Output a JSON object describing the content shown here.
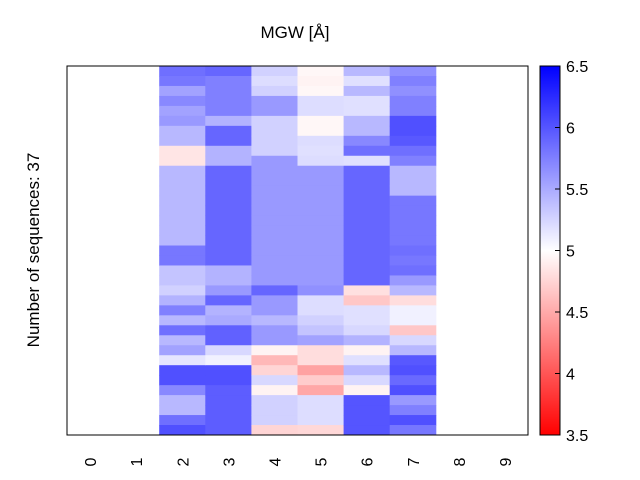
{
  "chart_data": {
    "type": "heatmap",
    "title": "MGW [Å]",
    "xlabel": "",
    "ylabel": "Number of sequences: 37",
    "x_ticks": [
      "0",
      "1",
      "2",
      "3",
      "4",
      "5",
      "6",
      "7",
      "8",
      "9"
    ],
    "n_rows": 37,
    "colorbar": {
      "min": 3.5,
      "max": 6.5,
      "center": 5,
      "ticks": [
        "3.5",
        "4",
        "4.5",
        "5",
        "5.5",
        "6",
        "6.5"
      ],
      "low_color": "#ff0000",
      "mid_color": "#ffffff",
      "high_color": "#0000ff"
    },
    "columns": [
      null,
      null,
      [
        5.85,
        5.8,
        5.55,
        5.7,
        5.55,
        5.6,
        5.42,
        5.42,
        4.85,
        4.85,
        5.42,
        5.42,
        5.42,
        5.42,
        5.42,
        5.42,
        5.42,
        5.42,
        5.8,
        5.8,
        5.35,
        5.35,
        5.27,
        5.45,
        5.75,
        5.42,
        5.85,
        5.42,
        5.55,
        5.15,
        6.03,
        6.03,
        5.7,
        5.42,
        5.42,
        5.85,
        6.03
      ],
      [
        5.9,
        5.75,
        5.75,
        5.75,
        5.75,
        5.45,
        5.9,
        5.9,
        5.45,
        5.45,
        5.9,
        5.9,
        5.9,
        5.9,
        5.9,
        5.9,
        5.9,
        5.9,
        5.9,
        5.9,
        5.45,
        5.45,
        5.6,
        5.9,
        5.45,
        5.5,
        5.93,
        5.93,
        5.23,
        5.08,
        6.03,
        6.03,
        5.95,
        5.95,
        5.95,
        5.95,
        5.95
      ],
      [
        5.27,
        5.2,
        5.27,
        5.6,
        5.6,
        5.27,
        5.27,
        5.27,
        5.27,
        5.6,
        5.6,
        5.6,
        5.6,
        5.6,
        5.6,
        5.6,
        5.6,
        5.6,
        5.6,
        5.6,
        5.6,
        5.6,
        5.9,
        5.6,
        5.6,
        5.42,
        5.6,
        5.6,
        4.93,
        4.58,
        4.75,
        5.23,
        4.93,
        5.27,
        5.27,
        5.27,
        4.75
      ],
      [
        4.95,
        4.93,
        4.95,
        5.2,
        5.2,
        4.95,
        4.95,
        5.2,
        5.18,
        5.2,
        5.6,
        5.6,
        5.6,
        5.6,
        5.6,
        5.6,
        5.6,
        5.6,
        5.6,
        5.6,
        5.6,
        5.6,
        5.65,
        5.2,
        5.2,
        5.27,
        5.35,
        5.55,
        4.8,
        4.8,
        4.45,
        4.7,
        4.48,
        5.2,
        5.2,
        5.2,
        4.77
      ],
      [
        5.42,
        5.18,
        5.42,
        5.18,
        5.18,
        5.42,
        5.42,
        5.7,
        5.85,
        5.18,
        5.9,
        5.9,
        5.9,
        5.9,
        5.9,
        5.9,
        5.9,
        5.9,
        5.9,
        5.9,
        5.9,
        5.9,
        4.82,
        4.67,
        5.18,
        5.18,
        5.23,
        5.45,
        4.93,
        5.18,
        5.42,
        5.23,
        4.93,
        6.0,
        6.0,
        6.0,
        6.0
      ],
      [
        5.65,
        5.75,
        5.65,
        5.75,
        5.75,
        6.03,
        6.03,
        5.98,
        5.85,
        5.75,
        5.42,
        5.42,
        5.42,
        5.8,
        5.8,
        5.8,
        5.8,
        5.8,
        5.85,
        5.8,
        5.85,
        5.6,
        5.42,
        4.8,
        5.08,
        5.08,
        4.67,
        5.23,
        5.42,
        5.98,
        6.03,
        5.88,
        6.03,
        5.6,
        5.75,
        6.03,
        5.8
      ],
      null,
      null
    ]
  }
}
